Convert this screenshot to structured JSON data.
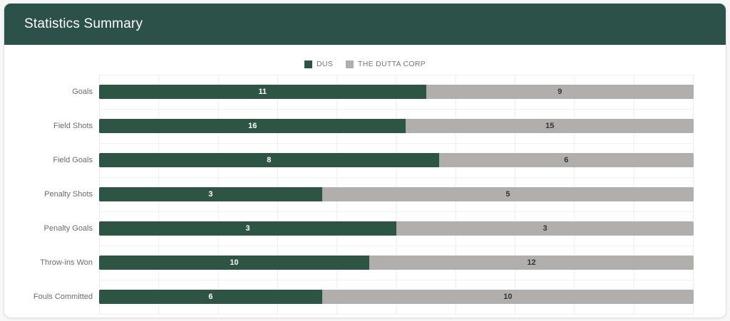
{
  "header": {
    "title": "Statistics Summary"
  },
  "colors": {
    "header_bg": "#2c5148",
    "series_primary": "#2e5446",
    "series_secondary": "#b1aeae",
    "card_bg": "#ffffff",
    "gridline": "#ececec",
    "label_text": "#6b6b6b",
    "legend_text": "#757575",
    "value_on_primary": "#ffffff",
    "value_on_secondary": "#333333"
  },
  "legend": {
    "items": [
      {
        "label": "DUS",
        "color": "#2e5446"
      },
      {
        "label": "THE DUTTA CORP",
        "color": "#b1aeae"
      }
    ]
  },
  "chart_data": {
    "type": "bar",
    "variant": "horizontal-stacked-100pct",
    "title": "Statistics Summary",
    "categories": [
      "Goals",
      "Field Shots",
      "Field Goals",
      "Penalty Shots",
      "Penalty Goals",
      "Throw-ins Won",
      "Fouls Committed"
    ],
    "series": [
      {
        "name": "DUS",
        "color": "#2e5446",
        "values": [
          11,
          16,
          8,
          3,
          3,
          10,
          6
        ]
      },
      {
        "name": "THE DUTTA CORP",
        "color": "#b1aeae",
        "values": [
          9,
          15,
          6,
          5,
          3,
          12,
          10
        ]
      }
    ],
    "xlabel": "",
    "ylabel": "",
    "xlim": [
      0,
      100
    ],
    "grid": "vertical lines every 10%, horizontal row separators",
    "legend_position": "top-center",
    "value_labels": "inside-center"
  }
}
